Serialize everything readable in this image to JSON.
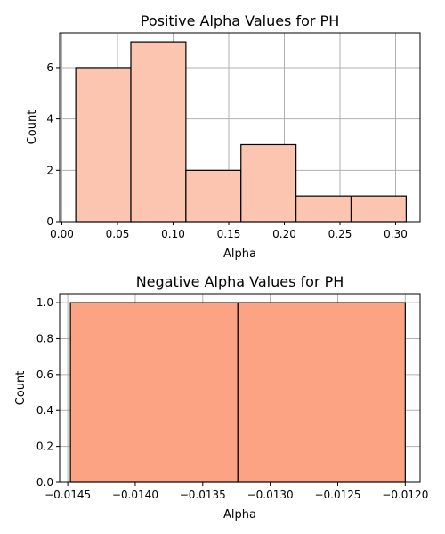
{
  "chart_data": [
    {
      "type": "bar",
      "title": "Positive Alpha Values for PH",
      "xlabel": "Alpha",
      "ylabel": "Count",
      "bin_edges": [
        0.0125,
        0.062,
        0.1115,
        0.161,
        0.2105,
        0.26,
        0.3095
      ],
      "values": [
        6,
        7,
        2,
        3,
        1,
        1
      ],
      "xlim": [
        -0.002,
        0.322
      ],
      "ylim": [
        0,
        7.35
      ],
      "xticks": [
        0.0,
        0.05,
        0.1,
        0.15,
        0.2,
        0.25,
        0.3
      ],
      "xtick_labels": [
        "0.00",
        "0.05",
        "0.10",
        "0.15",
        "0.20",
        "0.25",
        "0.30"
      ],
      "yticks": [
        0,
        2,
        4,
        6
      ],
      "ytick_labels": [
        "0",
        "2",
        "4",
        "6"
      ],
      "grid": true,
      "bar_color": "#fcc5b0"
    },
    {
      "type": "bar",
      "title": "Negative Alpha Values for PH",
      "xlabel": "Alpha",
      "ylabel": "Count",
      "bin_edges": [
        -0.01448,
        -0.01324,
        -0.012
      ],
      "values": [
        1,
        1
      ],
      "xlim": [
        -0.01456,
        -0.01189
      ],
      "ylim": [
        0,
        1.05
      ],
      "xticks": [
        -0.0145,
        -0.014,
        -0.0135,
        -0.013,
        -0.0125,
        -0.012
      ],
      "xtick_labels": [
        "−0.0145",
        "−0.0140",
        "−0.0135",
        "−0.0130",
        "−0.0125",
        "−0.0120"
      ],
      "yticks": [
        0,
        0.2,
        0.4,
        0.6,
        0.8,
        1.0
      ],
      "ytick_labels": [
        "0.0",
        "0.2",
        "0.4",
        "0.6",
        "0.8",
        "1.0"
      ],
      "grid": true,
      "bar_color": "#fca383"
    }
  ]
}
